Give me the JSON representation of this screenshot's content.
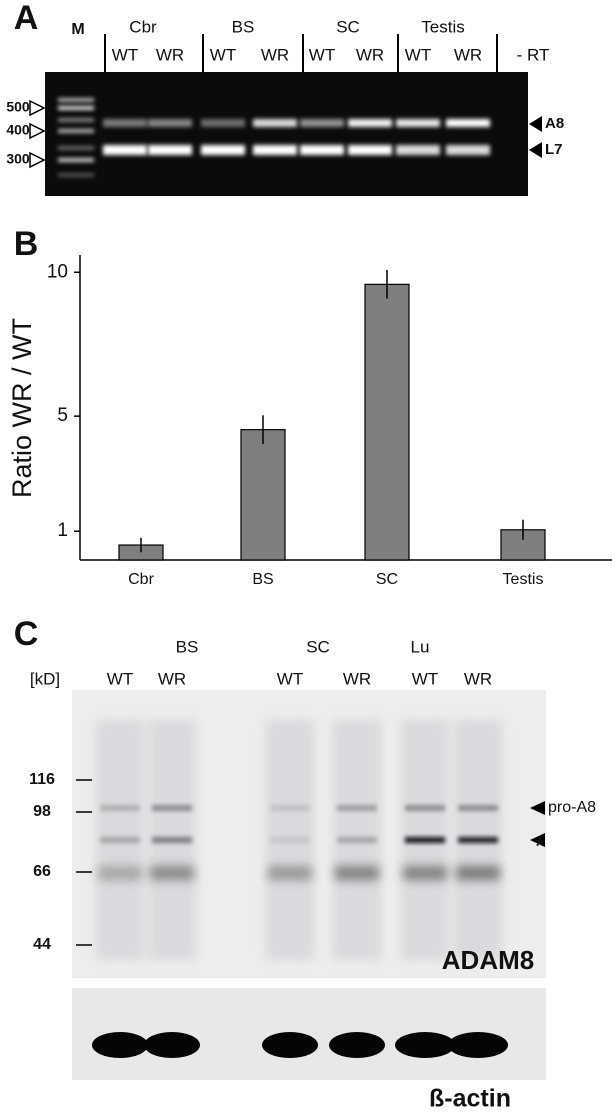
{
  "panel_a": {
    "label": "A",
    "marker_label": "M",
    "groups": [
      "Cbr",
      "BS",
      "SC",
      "Testis"
    ],
    "lanes": [
      "WT",
      "WR",
      "WT",
      "WR",
      "WT",
      "WR",
      "WT",
      "WR"
    ],
    "control": "- RT",
    "size_markers": [
      500,
      400,
      300
    ],
    "bands": [
      "A8",
      "L7"
    ]
  },
  "chart_data": {
    "type": "bar",
    "panel_label": "B",
    "ylabel": "Ratio WR / WT",
    "categories": [
      "Cbr",
      "BS",
      "SC",
      "Testis"
    ],
    "values": [
      0.52,
      4.53,
      9.58,
      1.05
    ],
    "errors": [
      0.25,
      0.5,
      0.5,
      0.35
    ],
    "color": "#7f7f7f",
    "ylim": [
      0,
      10.6
    ],
    "yticks": [
      1,
      5,
      10
    ]
  },
  "panel_c": {
    "label": "C",
    "groups": [
      "BS",
      "SC",
      "Lu"
    ],
    "unit": "[kD]",
    "lanes": [
      "WT",
      "WR",
      "WT",
      "WR",
      "WT",
      "WR"
    ],
    "size_markers": [
      116,
      98,
      66,
      44
    ],
    "arrow_labels": [
      "pro-A8",
      "*"
    ],
    "blot_label": "ADAM8",
    "loading_label": "ß-actin"
  }
}
